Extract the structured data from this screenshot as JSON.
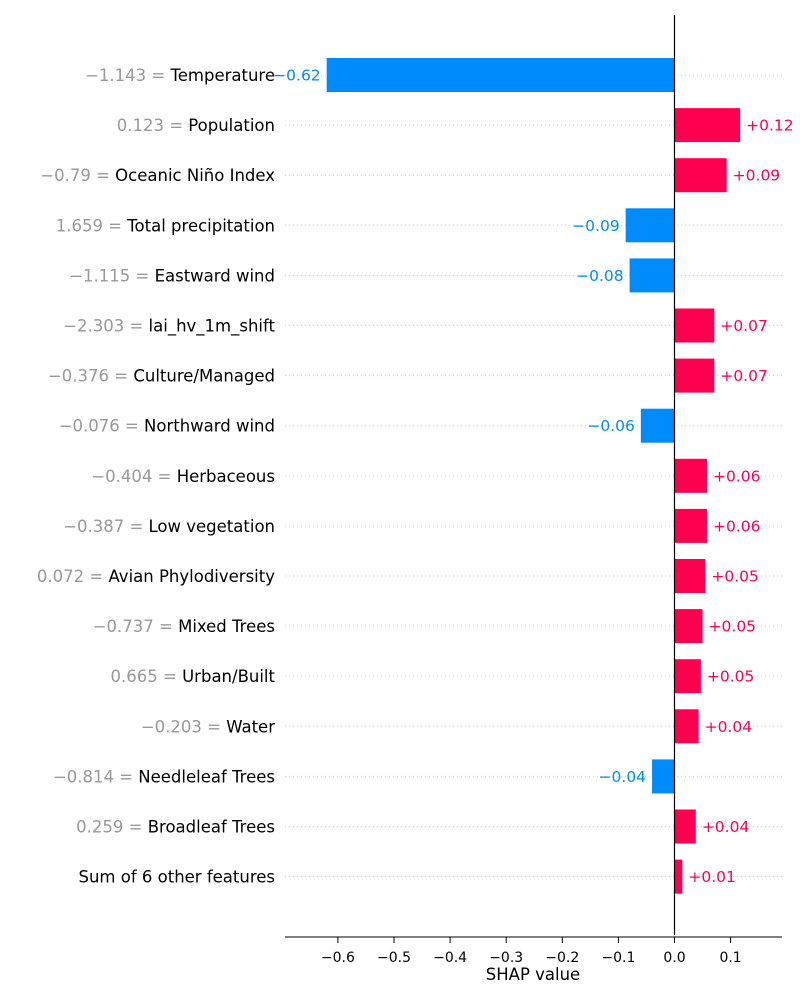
{
  "chart_data": {
    "type": "bar",
    "orientation": "horizontal",
    "xlabel": "SHAP value",
    "xlim": [
      -0.7,
      0.19
    ],
    "xticks": [
      -0.6,
      -0.5,
      -0.4,
      -0.3,
      -0.2,
      -0.1,
      0.0,
      0.1
    ],
    "xtick_labels": [
      "−0.6",
      "−0.5",
      "−0.4",
      "−0.3",
      "−0.2",
      "−0.1",
      "0.0",
      "0.1"
    ],
    "grid": "horizontal dotted",
    "colors": {
      "positive": "#ff0051",
      "negative": "#008bfb"
    },
    "features": [
      {
        "value_label": "−1.143",
        "name": "Temperature",
        "shap": -0.62,
        "label": "−0.62"
      },
      {
        "value_label": "0.123",
        "name": "Population",
        "shap": 0.117,
        "label": "+0.12"
      },
      {
        "value_label": "−0.79",
        "name": "Oceanic Niño Index",
        "shap": 0.093,
        "label": "+0.09"
      },
      {
        "value_label": "1.659",
        "name": "Total precipitation",
        "shap": -0.087,
        "label": "−0.09"
      },
      {
        "value_label": "−1.115",
        "name": "Eastward wind",
        "shap": -0.08,
        "label": "−0.08"
      },
      {
        "value_label": "−2.303",
        "name": "lai_hv_1m_shift",
        "shap": 0.071,
        "label": "+0.07"
      },
      {
        "value_label": "−0.376",
        "name": "Culture/Managed",
        "shap": 0.071,
        "label": "+0.07"
      },
      {
        "value_label": "−0.076",
        "name": "Northward wind",
        "shap": -0.06,
        "label": "−0.06"
      },
      {
        "value_label": "−0.404",
        "name": "Herbaceous",
        "shap": 0.058,
        "label": "+0.06"
      },
      {
        "value_label": "−0.387",
        "name": "Low vegetation",
        "shap": 0.058,
        "label": "+0.06"
      },
      {
        "value_label": "0.072",
        "name": "Avian Phylodiversity",
        "shap": 0.055,
        "label": "+0.05"
      },
      {
        "value_label": "−0.737",
        "name": "Mixed Trees",
        "shap": 0.05,
        "label": "+0.05"
      },
      {
        "value_label": "0.665",
        "name": "Urban/Built",
        "shap": 0.047,
        "label": "+0.05"
      },
      {
        "value_label": "−0.203",
        "name": "Water",
        "shap": 0.043,
        "label": "+0.04"
      },
      {
        "value_label": "−0.814",
        "name": "Needleleaf Trees",
        "shap": -0.04,
        "label": "−0.04"
      },
      {
        "value_label": "0.259",
        "name": "Broadleaf Trees",
        "shap": 0.038,
        "label": "+0.04"
      },
      {
        "value_label": "",
        "name": "Sum of 6 other features",
        "shap": 0.014,
        "label": "+0.01"
      }
    ]
  }
}
